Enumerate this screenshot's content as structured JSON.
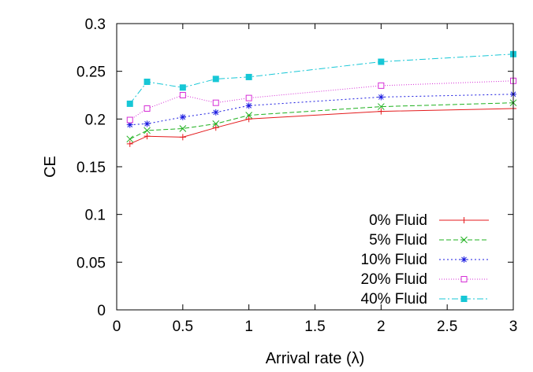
{
  "chart_data": {
    "type": "line",
    "xlabel": "Arrival rate (λ)",
    "ylabel": "CE",
    "xlim": [
      0,
      3
    ],
    "ylim": [
      0,
      0.3
    ],
    "xticks": [
      "0",
      "0.5",
      "1",
      "1.5",
      "2",
      "2.5",
      "3"
    ],
    "yticks": [
      "0",
      "0.05",
      "0.1",
      "0.15",
      "0.2",
      "0.25",
      "0.3"
    ],
    "grid": false,
    "legend_position": "bottom-right",
    "x": [
      0.1,
      0.23,
      0.5,
      0.75,
      1.0,
      2.0,
      3.0
    ],
    "series": [
      {
        "name": "0% Fluid",
        "color": "#e41a1c",
        "marker": "plus",
        "dash": "solid",
        "values": [
          0.174,
          0.182,
          0.181,
          0.191,
          0.2,
          0.208,
          0.211
        ]
      },
      {
        "name": "5% Fluid",
        "color": "#1fb11f",
        "marker": "x",
        "dash": "6,3",
        "values": [
          0.179,
          0.188,
          0.19,
          0.195,
          0.204,
          0.213,
          0.217
        ]
      },
      {
        "name": "10% Fluid",
        "color": "#1a1ae0",
        "marker": "asterisk",
        "dash": "2,3",
        "values": [
          0.194,
          0.195,
          0.202,
          0.207,
          0.214,
          0.223,
          0.226
        ]
      },
      {
        "name": "20% Fluid",
        "color": "#d62ed6",
        "marker": "square",
        "dash": "1,2",
        "values": [
          0.199,
          0.211,
          0.225,
          0.217,
          0.222,
          0.235,
          0.24
        ]
      },
      {
        "name": "40% Fluid",
        "color": "#17c7d6",
        "marker": "filled-square",
        "dash": "8,3,2,3",
        "values": [
          0.216,
          0.239,
          0.233,
          0.242,
          0.244,
          0.26,
          0.268
        ]
      }
    ]
  }
}
